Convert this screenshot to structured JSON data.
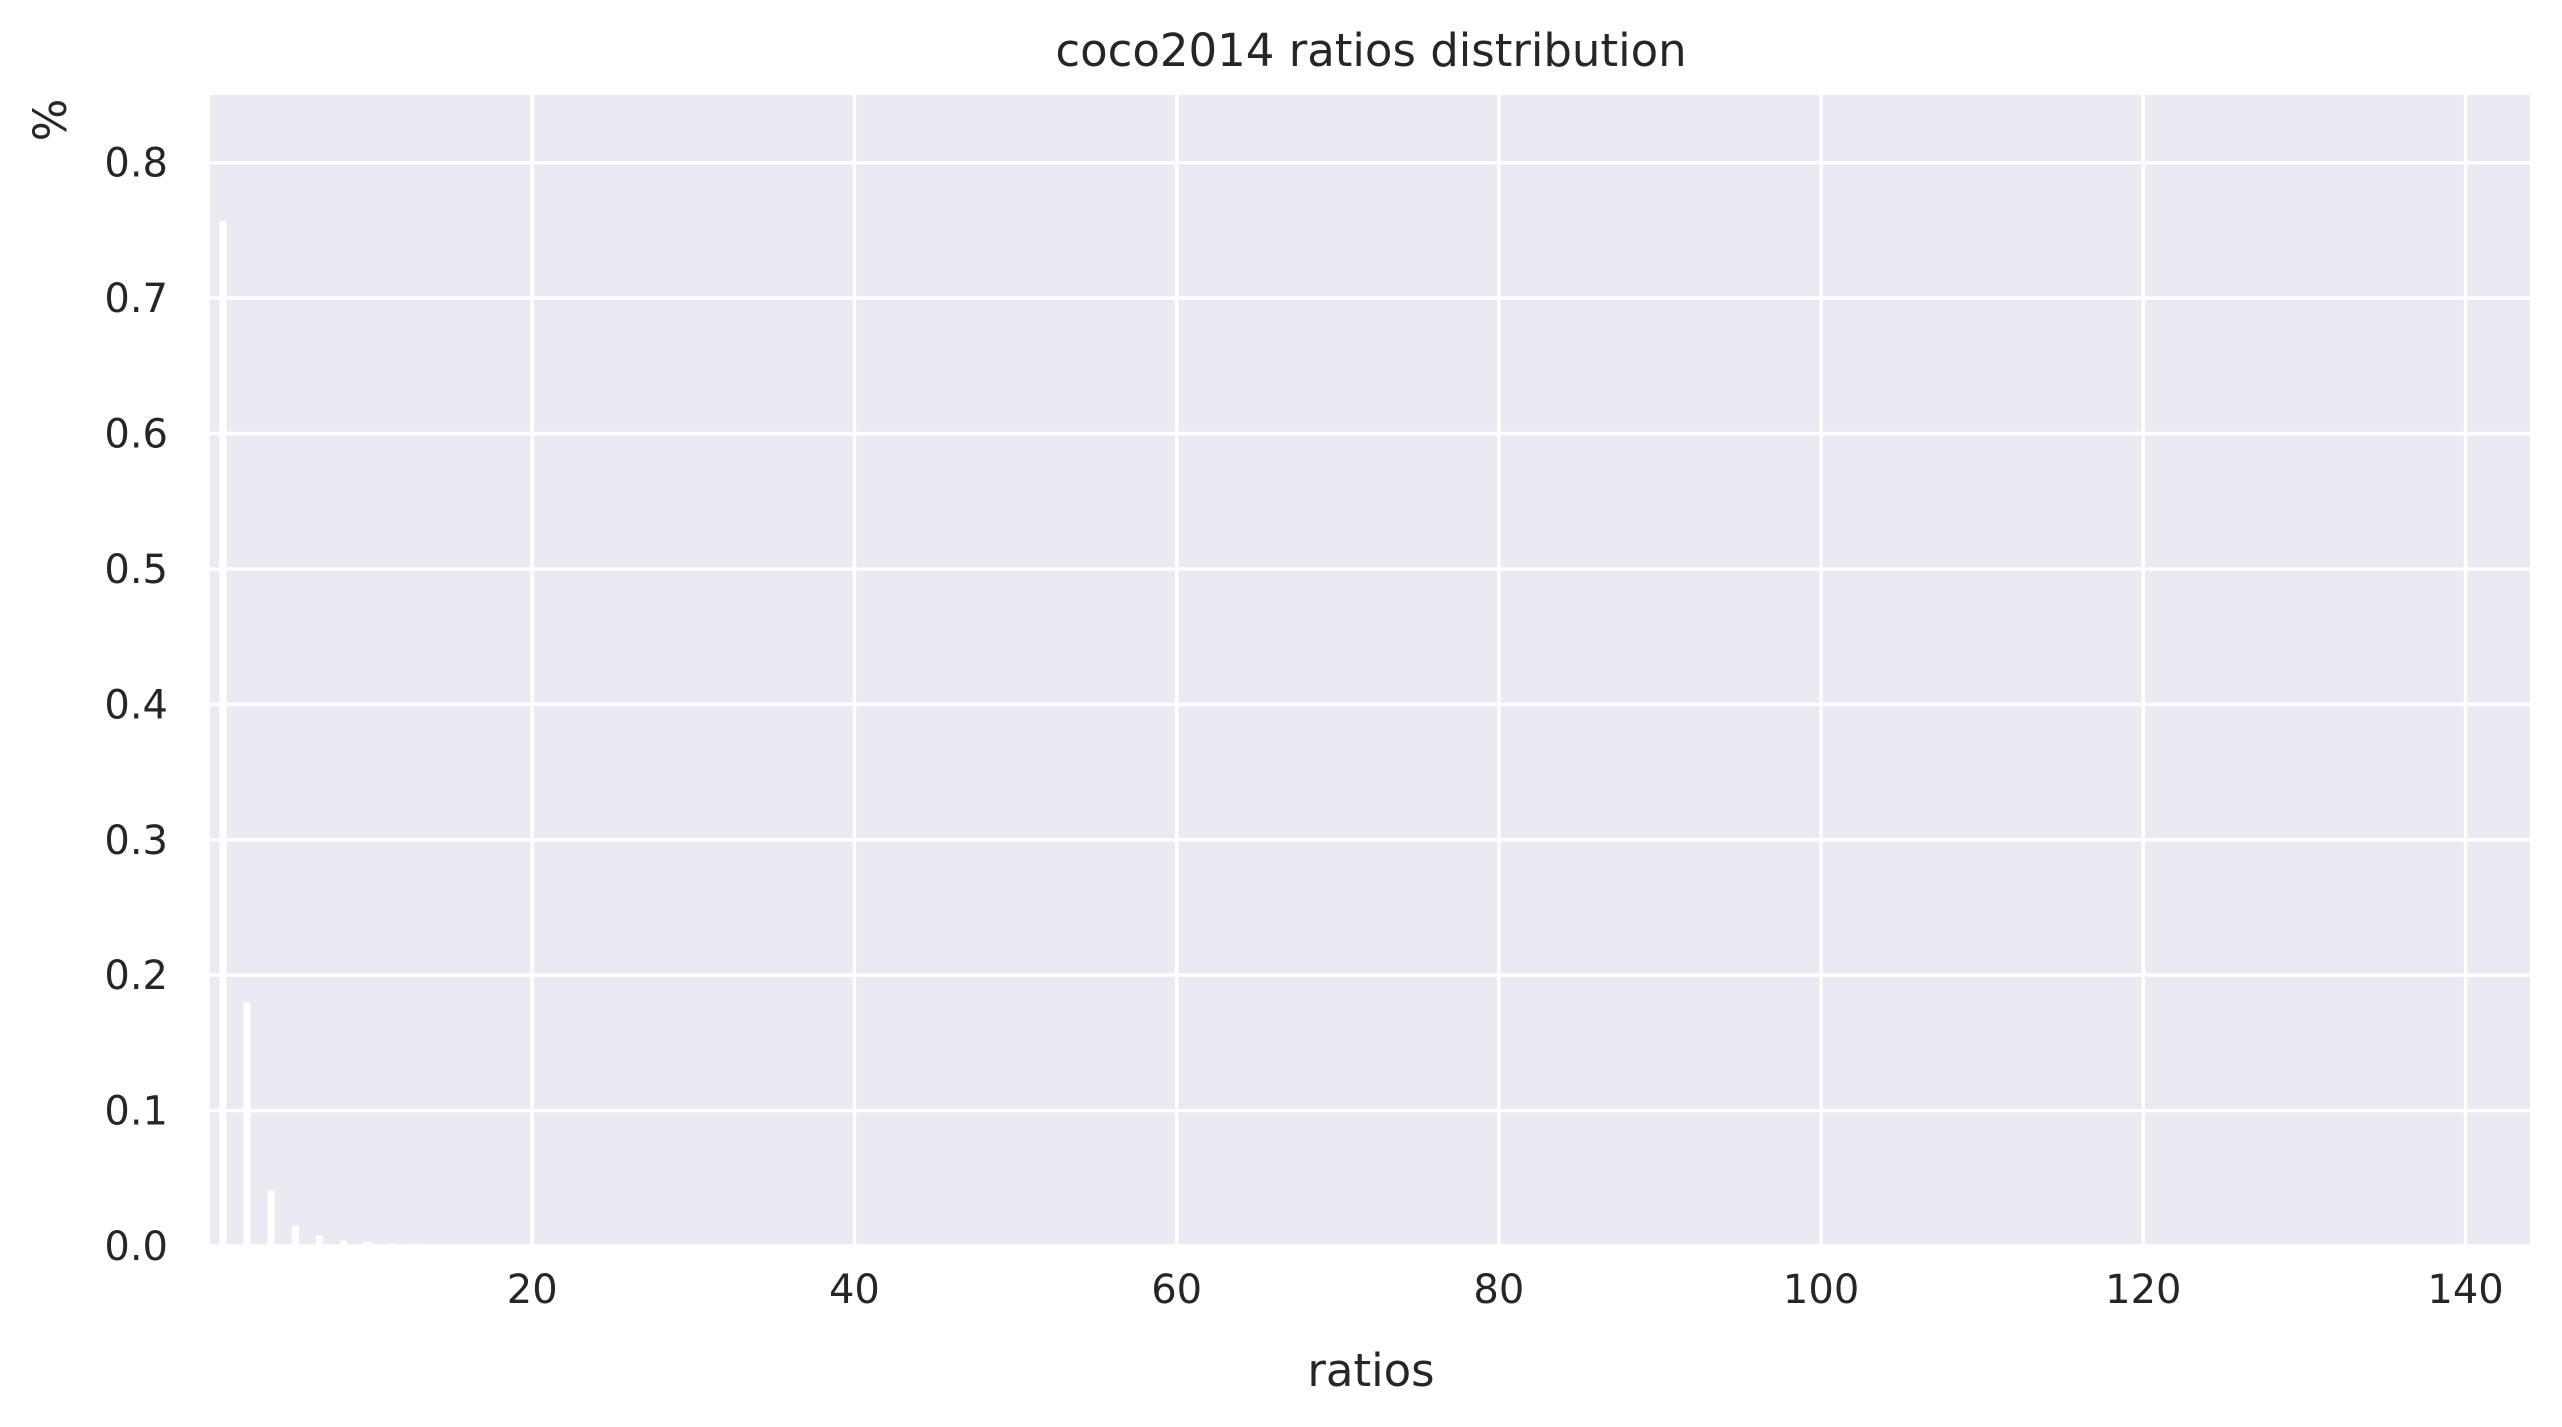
{
  "chart_data": {
    "type": "bar",
    "title": "coco2014 ratios distribution",
    "xlabel": "ratios",
    "ylabel": "%",
    "xlim": [
      0,
      144
    ],
    "ylim": [
      0,
      0.85
    ],
    "xticks": [
      20,
      40,
      60,
      80,
      100,
      120,
      140
    ],
    "yticks": [
      0.0,
      0.1,
      0.2,
      0.3,
      0.4,
      0.5,
      0.6,
      0.7,
      0.8
    ],
    "bar_width": 0.45,
    "grid": true,
    "background": "#eaeaf2",
    "bar_color": "#ffffff",
    "x": [
      0.8,
      2.3,
      3.8,
      5.3,
      6.8,
      8.3,
      9.8,
      11.3,
      12.8,
      14.3,
      15.8,
      17.3
    ],
    "values": [
      0.757,
      0.18,
      0.041,
      0.015,
      0.008,
      0.004,
      0.003,
      0.002,
      0.0015,
      0.001,
      0.001,
      0.0008
    ]
  }
}
